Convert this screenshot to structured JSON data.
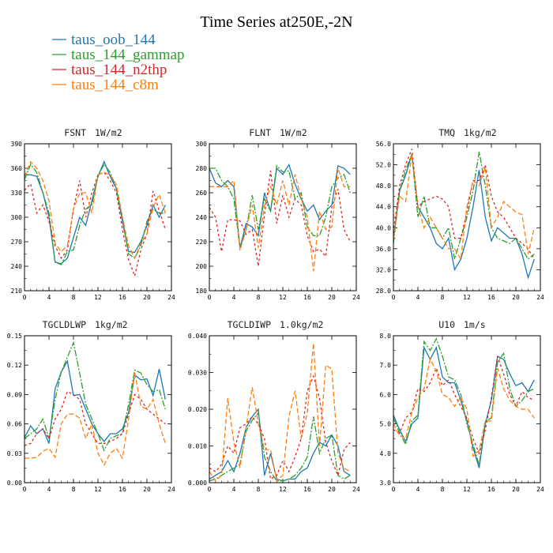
{
  "chart_data": {
    "type": "line",
    "title": "Time Series at250E,-2N",
    "legend": {
      "placement": "top-left",
      "entries": [
        {
          "name": "taus_oob_144",
          "color": "#1f77b4"
        },
        {
          "name": "taus_144_gammap",
          "color": "#2ca02c"
        },
        {
          "name": "taus_144_n2thp",
          "color": "#d62728"
        },
        {
          "name": "taus_144_c8m",
          "color": "#ff7f0e"
        }
      ]
    },
    "x": [
      0,
      1,
      2,
      3,
      4,
      5,
      6,
      7,
      8,
      9,
      10,
      11,
      12,
      13,
      14,
      15,
      16,
      17,
      18,
      19,
      20,
      21,
      22,
      23
    ],
    "panels": [
      {
        "title": "FSNT",
        "units": "1W/m2",
        "xlim": [
          0,
          24
        ],
        "ylim": [
          210,
          390
        ],
        "xticks": [
          "0",
          "4",
          "8",
          "12",
          "16",
          "20",
          "24"
        ],
        "yticks": [
          "210",
          "240",
          "270",
          "300",
          "330",
          "360",
          "390"
        ],
        "series": [
          {
            "name": "taus_oob_144",
            "color": "#1f77b4",
            "values": [
              352,
              352,
              350,
              330,
              300,
              245,
              243,
              250,
              275,
              300,
              290,
              320,
              350,
              368,
              350,
              335,
              295,
              258,
              257,
              270,
              290,
              315,
              300,
              315
            ]
          },
          {
            "name": "taus_144_gammap",
            "color": "#2ca02c",
            "values": [
              346,
              365,
              355,
              330,
              305,
              245,
              242,
              258,
              260,
              290,
              310,
              315,
              350,
              365,
              355,
              335,
              300,
              255,
              250,
              265,
              295,
              310,
              305,
              305
            ]
          },
          {
            "name": "taus_144_n2thp",
            "color": "#d62728",
            "values": [
              333,
              341,
              305,
              315,
              295,
              265,
              250,
              260,
              310,
              345,
              300,
              330,
              352,
              355,
              345,
              330,
              285,
              248,
              228,
              260,
              280,
              332,
              308,
              285
            ]
          },
          {
            "name": "taus_144_c8m",
            "color": "#ff7f0e",
            "values": [
              350,
              368,
              360,
              345,
              320,
              268,
              258,
              265,
              310,
              330,
              330,
              305,
              352,
              355,
              352,
              340,
              300,
              265,
              250,
              268,
              280,
              312,
              328,
              305
            ]
          }
        ]
      },
      {
        "title": "FLNT",
        "units": "1W/m2",
        "xlim": [
          0,
          24
        ],
        "ylim": [
          180,
          300
        ],
        "xticks": [
          "0",
          "4",
          "8",
          "12",
          "16",
          "20",
          "24"
        ],
        "yticks": [
          "180",
          "200",
          "220",
          "240",
          "260",
          "280",
          "300"
        ],
        "series": [
          {
            "name": "taus_oob_144",
            "color": "#1f77b4",
            "values": [
              280,
              268,
              265,
              270,
              265,
              215,
              235,
              232,
              225,
              260,
              245,
              280,
              275,
              283,
              267,
              255,
              245,
              250,
              238,
              245,
              250,
              282,
              280,
              275
            ]
          },
          {
            "name": "taus_144_gammap",
            "color": "#2ca02c",
            "values": [
              280,
              280,
              270,
              265,
              255,
              215,
              230,
              258,
              230,
              255,
              245,
              282,
              277,
              278,
              255,
              260,
              232,
              225,
              225,
              240,
              265,
              272,
              275,
              260
            ]
          },
          {
            "name": "taus_144_n2thp",
            "color": "#d62728",
            "values": [
              248,
              240,
              212,
              238,
              238,
              237,
              226,
              230,
              200,
              242,
              278,
              235,
              258,
              240,
              255,
              250,
              225,
              212,
              214,
              208,
              248,
              263,
              230,
              220
            ]
          },
          {
            "name": "taus_144_c8m",
            "color": "#ff7f0e",
            "values": [
              265,
              265,
              265,
              265,
              270,
              213,
              230,
              250,
              215,
              250,
              265,
              250,
              270,
              250,
              275,
              255,
              240,
              196,
              245,
              230,
              232,
              280,
              265,
              265
            ]
          }
        ]
      },
      {
        "title": "TMQ",
        "units": "1kg/m2",
        "xlim": [
          0,
          24
        ],
        "ylim": [
          28,
          56
        ],
        "xticks": [
          "0",
          "4",
          "8",
          "12",
          "16",
          "20",
          "24"
        ],
        "yticks": [
          "28.0",
          "32.0",
          "36.0",
          "40.0",
          "44.0",
          "48.0",
          "52.0",
          "56.0"
        ],
        "series": [
          {
            "name": "taus_oob_144",
            "color": "#1f77b4",
            "values": [
              38,
              47,
              50,
              54,
              44,
              42,
              40,
              37,
              36,
              38,
              32,
              34,
              38,
              44,
              51,
              42,
              37.5,
              40,
              39,
              38,
              38,
              35,
              30.5,
              34
            ]
          },
          {
            "name": "taus_144_gammap",
            "color": "#2ca02c",
            "values": [
              37,
              47,
              51,
              54,
              42,
              46,
              40,
              40,
              38,
              40,
              34,
              38,
              42,
              47,
              54.5,
              48,
              40,
              38,
              37.5,
              37,
              38,
              36,
              34,
              35
            ]
          },
          {
            "name": "taus_144_n2thp",
            "color": "#d62728",
            "values": [
              39,
              48,
              52,
              55,
              44,
              45,
              45.5,
              46,
              45.5,
              44,
              38,
              38,
              43,
              49,
              49,
              52,
              46,
              43,
              42,
              40,
              38,
              37,
              36,
              34
            ]
          },
          {
            "name": "taus_144_c8m",
            "color": "#ff7f0e",
            "values": [
              38,
              46,
              45,
              54,
              44,
              40,
              42,
              40,
              38,
              36,
              36,
              34,
              44,
              49,
              48,
              51.5,
              40,
              42,
              45,
              44,
              43,
              42.5,
              35,
              40
            ]
          }
        ]
      },
      {
        "title": "TGCLDLWP",
        "units": "1kg/m2",
        "xlim": [
          0,
          24
        ],
        "ylim": [
          0,
          0.15
        ],
        "xticks": [
          "0",
          "4",
          "8",
          "12",
          "16",
          "20",
          "24"
        ],
        "yticks": [
          "0.00",
          "0.03",
          "0.06",
          "0.09",
          "0.12",
          "0.15"
        ],
        "series": [
          {
            "name": "taus_oob_144",
            "color": "#1f77b4",
            "values": [
              0.046,
              0.058,
              0.05,
              0.055,
              0.04,
              0.096,
              0.113,
              0.124,
              0.089,
              0.09,
              0.075,
              0.06,
              0.05,
              0.042,
              0.05,
              0.05,
              0.055,
              0.072,
              0.11,
              0.105,
              0.106,
              0.089,
              0.116,
              0.085
            ]
          },
          {
            "name": "taus_144_gammap",
            "color": "#2ca02c",
            "values": [
              0.045,
              0.05,
              0.055,
              0.065,
              0.045,
              0.085,
              0.113,
              0.128,
              0.143,
              0.112,
              0.08,
              0.065,
              0.05,
              0.033,
              0.045,
              0.048,
              0.05,
              0.08,
              0.115,
              0.112,
              0.1,
              0.093,
              0.095,
              0.075
            ]
          },
          {
            "name": "taus_144_n2thp",
            "color": "#d62728",
            "values": [
              0.038,
              0.04,
              0.05,
              0.055,
              0.045,
              0.065,
              0.075,
              0.093,
              0.09,
              0.085,
              0.06,
              0.05,
              0.04,
              0.04,
              0.042,
              0.045,
              0.05,
              0.07,
              0.09,
              0.085,
              0.075,
              0.07,
              0.065,
              0.06
            ]
          },
          {
            "name": "taus_144_c8m",
            "color": "#ff7f0e",
            "values": [
              0.025,
              0.025,
              0.026,
              0.032,
              0.035,
              0.026,
              0.06,
              0.07,
              0.07,
              0.066,
              0.045,
              0.06,
              0.03,
              0.018,
              0.03,
              0.035,
              0.025,
              0.065,
              0.113,
              0.078,
              0.075,
              0.085,
              0.06,
              0.04
            ]
          }
        ]
      },
      {
        "title": "TGCLDIWP",
        "units": "1.0kg/m2",
        "xlim": [
          0,
          24
        ],
        "ylim": [
          0,
          0.04
        ],
        "xticks": [
          "0",
          "4",
          "8",
          "12",
          "16",
          "20",
          "24"
        ],
        "yticks": [
          "0.000",
          "0.010",
          "0.020",
          "0.030",
          "0.040"
        ],
        "series": [
          {
            "name": "taus_oob_144",
            "color": "#1f77b4",
            "values": [
              0.001,
              0.002,
              0.003,
              0.006,
              0.003,
              0.008,
              0.015,
              0.018,
              0.02,
              0.002,
              0.008,
              0.001,
              0.0005,
              0.001,
              0.001,
              0.003,
              0.004,
              0.008,
              0.011,
              0.01,
              0.013,
              0.01,
              0.003,
              0.002
            ]
          },
          {
            "name": "taus_144_gammap",
            "color": "#2ca02c",
            "values": [
              0.0005,
              0.001,
              0.002,
              0.003,
              0.004,
              0.005,
              0.014,
              0.017,
              0.019,
              0.007,
              0.003,
              0.0005,
              0.0005,
              0.001,
              0.002,
              0.004,
              0.007,
              0.018,
              0.008,
              0.012,
              0.013,
              0.002,
              0.001,
              0.002
            ]
          },
          {
            "name": "taus_144_n2thp",
            "color": "#d62728",
            "values": [
              0.004,
              0.003,
              0.005,
              0.01,
              0.008,
              0.015,
              0.016,
              0.018,
              0.016,
              0.012,
              0.001,
              0.002,
              0.006,
              0.003,
              0.007,
              0.012,
              0.025,
              0.029,
              0.023,
              0.011,
              0.006,
              0.002,
              0.009,
              0.011
            ]
          },
          {
            "name": "taus_144_c8m",
            "color": "#ff7f0e",
            "values": [
              0.003,
              0.0005,
              0.002,
              0.023,
              0.011,
              0.004,
              0.015,
              0.026,
              0.016,
              0.009,
              0.009,
              0.0005,
              0.002,
              0.018,
              0.025,
              0.012,
              0.019,
              0.038,
              0.01,
              0.032,
              0.031,
              0.008,
              0.004,
              0.003
            ]
          }
        ]
      },
      {
        "title": "U10",
        "units": "1m/s",
        "xlim": [
          0,
          24
        ],
        "ylim": [
          3,
          8
        ],
        "xticks": [
          "0",
          "4",
          "8",
          "12",
          "16",
          "20",
          "24"
        ],
        "yticks": [
          "3.0",
          "4.0",
          "5.0",
          "6.0",
          "7.0",
          "8.0"
        ],
        "series": [
          {
            "name": "taus_oob_144",
            "color": "#1f77b4",
            "values": [
              5.3,
              4.8,
              4.4,
              5.0,
              5.2,
              7.6,
              7.2,
              7.6,
              6.6,
              6.4,
              6.4,
              5.8,
              5.1,
              4.2,
              3.5,
              5.0,
              5.8,
              7.3,
              7.2,
              6.7,
              6.3,
              6.4,
              6.1,
              6.5
            ]
          },
          {
            "name": "taus_144_gammap",
            "color": "#2ca02c",
            "values": [
              5.2,
              4.7,
              4.3,
              5.1,
              5.3,
              7.8,
              7.5,
              7.9,
              7.3,
              6.6,
              6.5,
              6.0,
              5.0,
              4.3,
              3.6,
              5.1,
              5.2,
              7.1,
              7.4,
              6.2,
              5.6,
              5.8,
              6.1,
              6.2
            ]
          },
          {
            "name": "taus_144_n2thp",
            "color": "#d62728",
            "values": [
              4.8,
              4.7,
              5.2,
              5.4,
              6.2,
              6.1,
              6.4,
              6.9,
              6.3,
              6.5,
              6.0,
              5.6,
              5.2,
              4.5,
              4.0,
              4.8,
              5.9,
              7.3,
              6.7,
              6.0,
              5.6,
              6.1,
              5.9,
              5.8
            ]
          },
          {
            "name": "taus_144_c8m",
            "color": "#ff7f0e",
            "values": [
              5.0,
              4.6,
              4.5,
              5.4,
              5.9,
              6.2,
              7.2,
              6.8,
              6.0,
              5.9,
              5.6,
              5.9,
              5.5,
              3.9,
              4.1,
              5.1,
              5.1,
              6.9,
              6.2,
              5.8,
              5.6,
              5.5,
              5.5,
              5.2
            ]
          }
        ]
      }
    ]
  }
}
